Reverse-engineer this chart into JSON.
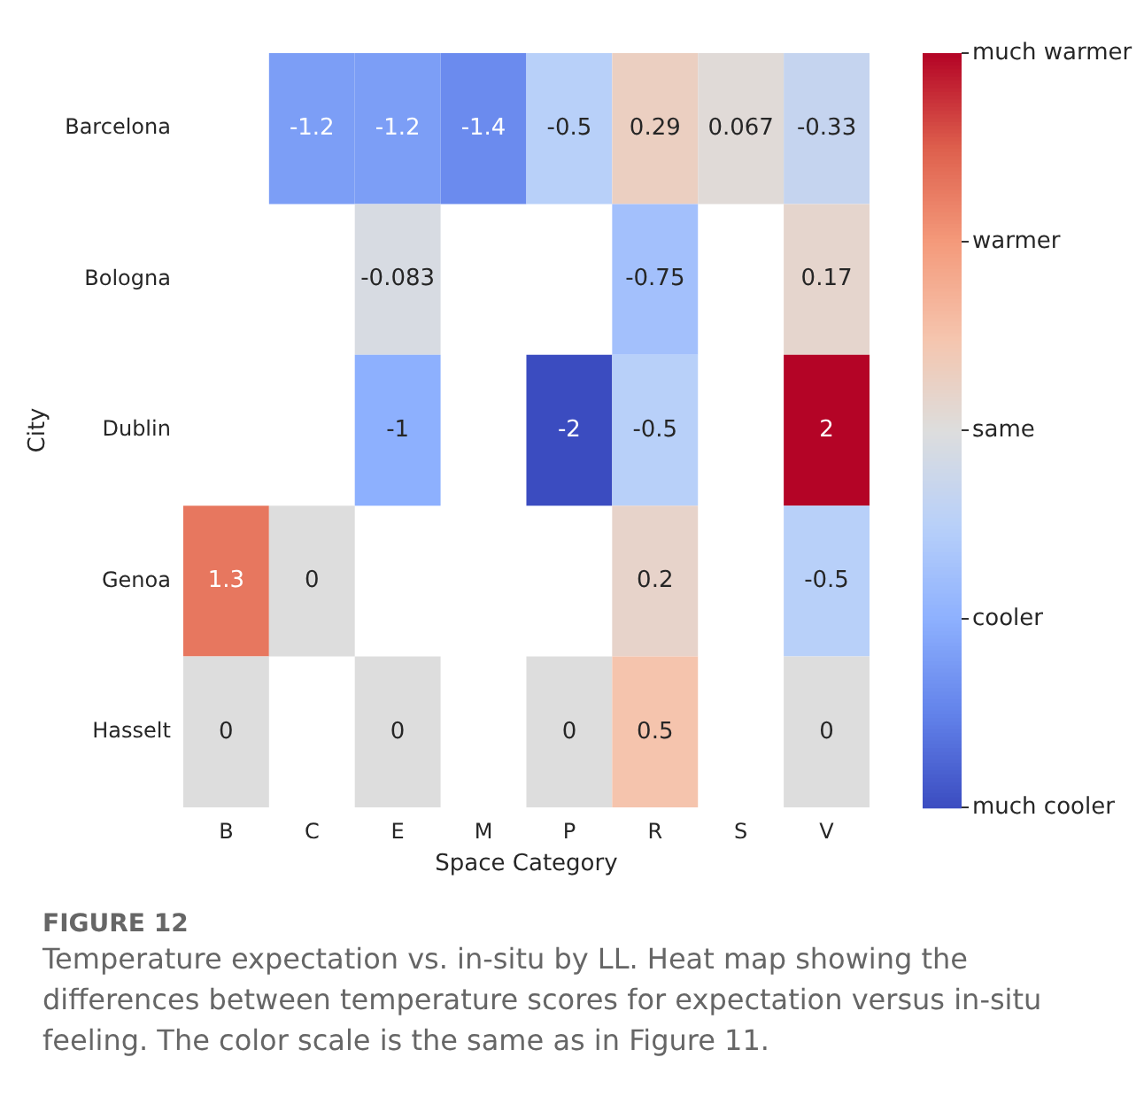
{
  "chart_data": {
    "type": "heatmap",
    "xlabel": "Space Category",
    "ylabel": "City",
    "categories": [
      "B",
      "C",
      "E",
      "M",
      "P",
      "R",
      "S",
      "V"
    ],
    "y_categories": [
      "Barcelona",
      "Bologna",
      "Dublin",
      "Genoa",
      "Hasselt"
    ],
    "cells": [
      [
        null,
        -1.2,
        -1.2,
        -1.4,
        -0.5,
        0.29,
        0.067,
        -0.33
      ],
      [
        null,
        null,
        -0.083,
        null,
        null,
        -0.75,
        null,
        0.17
      ],
      [
        null,
        null,
        -1,
        null,
        -2,
        -0.5,
        null,
        2
      ],
      [
        1.3,
        0,
        null,
        null,
        null,
        0.2,
        null,
        -0.5
      ],
      [
        0,
        null,
        0,
        null,
        0,
        0.5,
        null,
        0
      ]
    ],
    "clim": [
      -2,
      2
    ],
    "cticks": [
      {
        "value": 2,
        "label": "much warmer"
      },
      {
        "value": 1,
        "label": "warmer"
      },
      {
        "value": 0,
        "label": "same"
      },
      {
        "value": -1,
        "label": "cooler"
      },
      {
        "value": -2,
        "label": "much cooler"
      }
    ],
    "data_labels": true,
    "annotations": [
      "FIGURE 12",
      "Temperature expectation vs. in-situ by LL. Heat map showing the differences between temperature scores for expectation versus in-situ feeling. The color scale is the same as in Figure 11."
    ]
  }
}
